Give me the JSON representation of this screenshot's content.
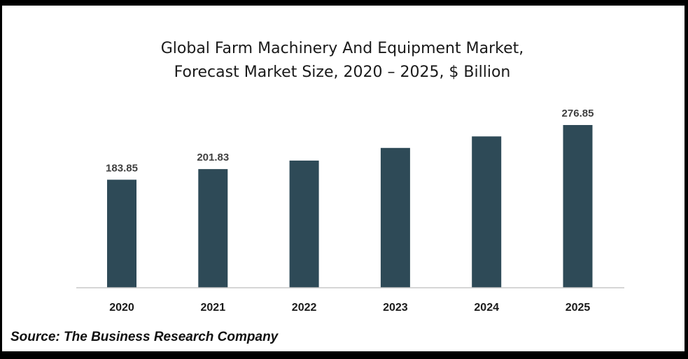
{
  "chart_data": {
    "type": "bar",
    "title": [
      "Global Farm Machinery And Equipment Market,",
      "Forecast Market Size, 2020 – 2025, $ Billion"
    ],
    "categories": [
      "2020",
      "2021",
      "2022",
      "2023",
      "2024",
      "2025"
    ],
    "values": [
      183.85,
      201.83,
      216.4,
      237.9,
      257.5,
      276.85
    ],
    "data_labels": [
      "183.85",
      "201.83",
      "",
      "",
      "",
      "276.85"
    ],
    "xlabel": "",
    "ylabel": "",
    "ylim": [
      0,
      300
    ],
    "grid": false,
    "bar_color": "#2e4a57"
  },
  "source": "Source: The Business Research Company"
}
